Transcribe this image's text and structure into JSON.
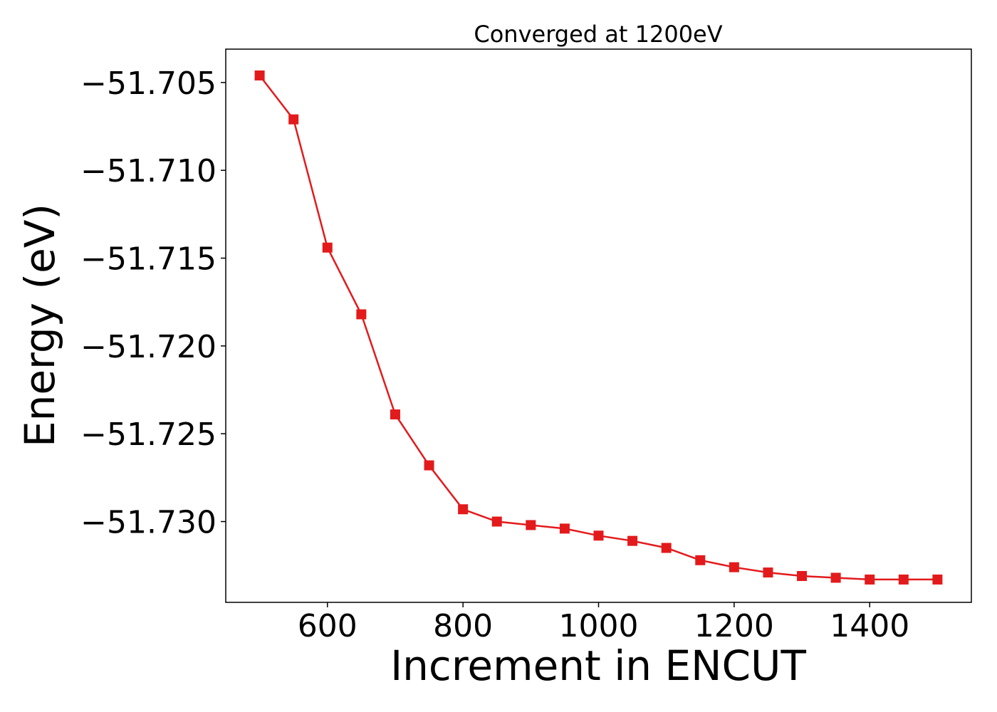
{
  "chart_data": {
    "type": "line",
    "title": "Converged at 1200eV",
    "xlabel": "Increment in ENCUT",
    "ylabel": "Energy (eV)",
    "x": [
      500,
      550,
      600,
      650,
      700,
      750,
      800,
      850,
      900,
      950,
      1000,
      1050,
      1100,
      1150,
      1200,
      1250,
      1300,
      1350,
      1400,
      1450,
      1500
    ],
    "series": [
      {
        "color": "#e31a1c",
        "marker": "square",
        "values": [
          -51.7046,
          -51.7071,
          -51.7144,
          -51.7182,
          -51.7239,
          -51.7268,
          -51.7293,
          -51.73,
          -51.7302,
          -51.7304,
          -51.7308,
          -51.7311,
          -51.7315,
          -51.7322,
          -51.7326,
          -51.7329,
          -51.7331,
          -51.7332,
          -51.7333,
          -51.7333,
          -51.7333
        ]
      }
    ],
    "xlim": [
      450,
      1550
    ],
    "ylim": [
      -51.7346,
      -51.7031
    ],
    "xticks": [
      600,
      800,
      1000,
      1200,
      1400
    ],
    "xtick_labels": [
      "600",
      "800",
      "1000",
      "1200",
      "1400"
    ],
    "yticks": [
      -51.705,
      -51.71,
      -51.715,
      -51.72,
      -51.725,
      -51.73
    ],
    "ytick_labels": [
      "−51.705",
      "−51.710",
      "−51.715",
      "−51.720",
      "−51.725",
      "−51.730"
    ],
    "grid": false,
    "legend": "none"
  }
}
